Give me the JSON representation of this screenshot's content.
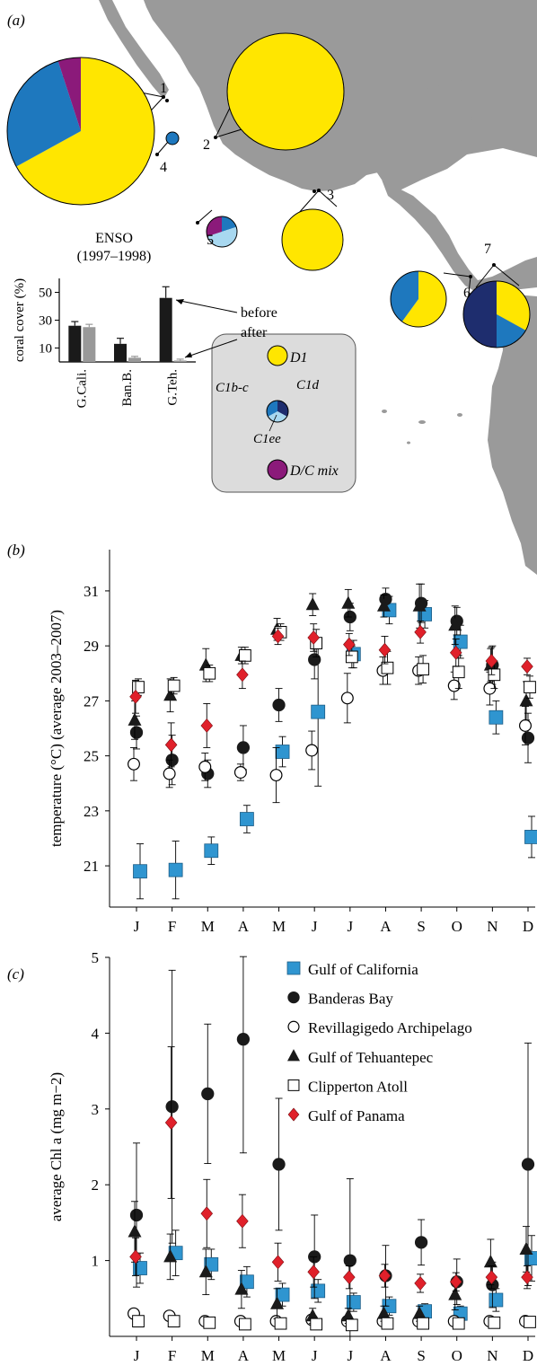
{
  "colors": {
    "land": "#9a9a9a",
    "d1": "#ffe600",
    "c1bc": "#1e78be",
    "c1d": "#1e2d6e",
    "c1ee": "#a8d8f0",
    "dc_mix": "#8b1a7a",
    "gulf_california": "#2f95d0",
    "gulf_panama": "#e0202a",
    "before_bar": "#1a1a1a",
    "after_bar": "#999999"
  },
  "panel_labels": {
    "a": "(a)",
    "b": "(b)",
    "c": "(c)"
  },
  "map": {
    "sites": [
      {
        "id": "1",
        "label": "1",
        "composition": {
          "D1": 0.67,
          "C1b-c": 0.28,
          "D/C mix": 0.05
        }
      },
      {
        "id": "2",
        "label": "2",
        "composition": {
          "D1": 1.0
        }
      },
      {
        "id": "3",
        "label": "3",
        "composition": {
          "D1": 1.0
        }
      },
      {
        "id": "4",
        "label": "4",
        "composition": {
          "C1b-c": 1.0
        }
      },
      {
        "id": "5",
        "label": "5",
        "composition": {
          "C1b-c": 0.2,
          "C1ee": 0.5,
          "D/C mix": 0.3
        }
      },
      {
        "id": "6",
        "label": "6",
        "composition": {
          "D1": 0.6,
          "C1b-c": 0.4
        }
      },
      {
        "id": "7",
        "label": "7",
        "composition": {
          "D1": 0.33,
          "C1b-c": 0.17,
          "C1d": 0.5
        }
      }
    ],
    "legend": [
      {
        "key": "d1",
        "label": "D1"
      },
      {
        "key": "c1bc",
        "label": "C1b-c"
      },
      {
        "key": "c1d",
        "label": "C1d"
      },
      {
        "key": "c1ee",
        "label": "C1ee"
      },
      {
        "key": "dc_mix",
        "label": "D/C mix"
      }
    ]
  },
  "chart_data": [
    {
      "panel": "a-inset",
      "type": "bar",
      "title": "ENSO",
      "subtitle": "(1997–1998)",
      "ylabel": "coral cover (%)",
      "categories": [
        "G.Cali.",
        "Ban.B.",
        "G.Teh."
      ],
      "yticks": [
        10,
        30,
        50
      ],
      "ylim": [
        0,
        60
      ],
      "series": [
        {
          "name": "before",
          "values": [
            26,
            13,
            46
          ],
          "errors": [
            3,
            4,
            8
          ]
        },
        {
          "name": "after",
          "values": [
            25,
            3,
            1
          ],
          "errors": [
            2,
            1,
            1
          ]
        }
      ]
    },
    {
      "panel": "b",
      "type": "scatter",
      "ylabel": "temperature (°C) (average 2003–2007)",
      "categories": [
        "J",
        "F",
        "M",
        "A",
        "M",
        "J",
        "J",
        "A",
        "S",
        "O",
        "N",
        "D"
      ],
      "yticks": [
        21,
        23,
        25,
        27,
        29,
        31
      ],
      "ylim": [
        19.5,
        32.5
      ],
      "series": [
        {
          "name": "Gulf of California",
          "values": [
            20.8,
            20.85,
            21.55,
            22.7,
            25.15,
            26.6,
            28.7,
            30.3,
            30.15,
            29.15,
            26.4,
            22.05
          ],
          "errors": [
            1.0,
            1.05,
            0.5,
            0.5,
            0.55,
            2.7,
            0.5,
            0.5,
            0.5,
            0.6,
            0.6,
            0.75
          ]
        },
        {
          "name": "Banderas Bay",
          "values": [
            25.85,
            24.85,
            24.35,
            25.3,
            26.85,
            28.5,
            30.05,
            30.7,
            30.55,
            29.9,
            28.3,
            25.65
          ],
          "errors": [
            0.6,
            0.9,
            0.5,
            0.8,
            0.6,
            0.7,
            0.5,
            0.4,
            0.7,
            0.5,
            0.7,
            0.9
          ]
        },
        {
          "name": "Revillagigedo Archipelago",
          "values": [
            24.7,
            24.35,
            24.6,
            24.4,
            24.3,
            25.2,
            27.1,
            28.1,
            28.1,
            27.55,
            27.45,
            26.1
          ],
          "errors": [
            0.6,
            0.5,
            0.5,
            0.3,
            1.0,
            0.7,
            0.9,
            0.5,
            0.5,
            0.5,
            0.6,
            0.7
          ]
        },
        {
          "name": "Gulf of Tehuantepec",
          "values": [
            26.3,
            27.2,
            28.3,
            28.65,
            29.6,
            30.5,
            30.55,
            30.45,
            30.45,
            29.75,
            28.3,
            27.0
          ],
          "errors": [
            0.7,
            0.6,
            0.6,
            0.3,
            0.4,
            0.4,
            0.5,
            0.4,
            0.8,
            0.7,
            0.6,
            0.7
          ]
        },
        {
          "name": "Clipperton Atoll",
          "values": [
            27.5,
            27.55,
            28.0,
            28.65,
            29.5,
            29.1,
            28.6,
            28.2,
            28.15,
            28.05,
            27.95,
            27.5
          ],
          "errors": [
            0.3,
            0.3,
            0.3,
            0.3,
            0.3,
            0.5,
            0.4,
            0.6,
            0.5,
            0.6,
            0.5,
            0.4
          ]
        },
        {
          "name": "Gulf of Panama",
          "values": [
            27.15,
            25.4,
            26.1,
            27.95,
            29.35,
            29.3,
            29.05,
            28.85,
            29.5,
            28.75,
            28.45,
            28.25
          ],
          "errors": [
            0.6,
            0.8,
            0.8,
            0.5,
            0.3,
            0.5,
            0.4,
            0.5,
            0.4,
            0.5,
            0.5,
            0.3
          ]
        }
      ]
    },
    {
      "panel": "c",
      "type": "scatter",
      "ylabel": "average Chl a (mg m−2)",
      "categories": [
        "J",
        "F",
        "M",
        "A",
        "M",
        "J",
        "J",
        "A",
        "S",
        "O",
        "N",
        "D"
      ],
      "yticks": [
        1,
        2,
        3,
        4,
        5
      ],
      "ylim": [
        0,
        5
      ],
      "series": [
        {
          "name": "Gulf of California",
          "values": [
            0.9,
            1.1,
            0.95,
            0.72,
            0.55,
            0.6,
            0.45,
            0.4,
            0.33,
            0.3,
            0.48,
            1.03
          ],
          "errors": [
            0.2,
            0.3,
            0.2,
            0.2,
            0.15,
            0.15,
            0.12,
            0.12,
            0.1,
            0.1,
            0.15,
            0.3
          ]
        },
        {
          "name": "Banderas Bay",
          "values": [
            1.6,
            3.03,
            3.2,
            3.92,
            2.27,
            1.05,
            1.0,
            0.8,
            1.24,
            0.72,
            0.68,
            2.27
          ],
          "errors": [
            0.95,
            1.8,
            0.92,
            1.5,
            0.87,
            0.55,
            1.08,
            0.4,
            0.3,
            0.3,
            0.3,
            1.6
          ]
        },
        {
          "name": "Revillagigedo Archipelago",
          "values": [
            0.3,
            0.27,
            0.2,
            0.2,
            0.2,
            0.22,
            0.2,
            0.2,
            0.2,
            0.2,
            0.2,
            0.2
          ],
          "errors": [
            0.05,
            0.05,
            0.05,
            0.05,
            0.05,
            0.05,
            0.05,
            0.05,
            0.05,
            0.05,
            0.05,
            0.05
          ]
        },
        {
          "name": "Gulf of Tehuantepec",
          "values": [
            1.38,
            1.05,
            0.85,
            0.62,
            0.43,
            0.27,
            0.27,
            0.3,
            0.3,
            0.55,
            0.98,
            1.15
          ],
          "errors": [
            0.4,
            0.3,
            0.3,
            0.25,
            0.2,
            0.1,
            0.1,
            0.1,
            0.1,
            0.2,
            0.3,
            0.3
          ]
        },
        {
          "name": "Clipperton Atoll",
          "values": [
            0.2,
            0.2,
            0.18,
            0.16,
            0.17,
            0.16,
            0.15,
            0.17,
            0.17,
            0.17,
            0.18,
            0.19
          ],
          "errors": [
            0.04,
            0.04,
            0.04,
            0.04,
            0.04,
            0.04,
            0.04,
            0.04,
            0.04,
            0.04,
            0.04,
            0.04
          ]
        },
        {
          "name": "Gulf of Panama",
          "values": [
            1.05,
            2.82,
            1.62,
            1.52,
            0.98,
            0.85,
            0.78,
            0.8,
            0.7,
            0.72,
            0.78,
            0.78
          ],
          "errors": [
            0.25,
            1.0,
            0.45,
            0.35,
            0.25,
            0.2,
            0.15,
            0.15,
            0.12,
            0.12,
            0.15,
            0.15
          ]
        }
      ],
      "legend_position": "top-right"
    }
  ]
}
